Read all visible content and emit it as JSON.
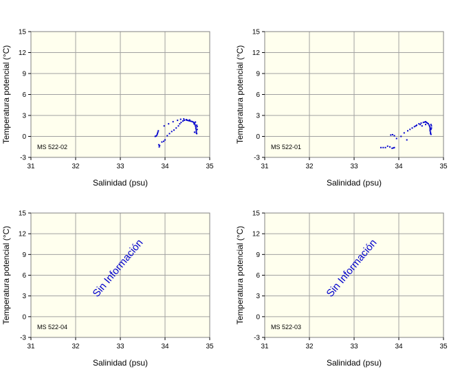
{
  "chart_data": [
    {
      "type": "scatter",
      "station": "MS 522-02",
      "xlabel": "Salinidad (psu)",
      "ylabel": "Temperatura potencial (°C)",
      "xlim": [
        31,
        35
      ],
      "ylim": [
        -3,
        15
      ],
      "xticks": [
        "31",
        "32",
        "33",
        "34",
        "35"
      ],
      "yticks": [
        "-3",
        "0",
        "3",
        "6",
        "9",
        "12",
        "15"
      ],
      "grid": true,
      "points": [
        [
          33.78,
          0.0
        ],
        [
          33.8,
          0.05
        ],
        [
          33.82,
          0.2
        ],
        [
          33.83,
          0.4
        ],
        [
          33.84,
          0.6
        ],
        [
          33.85,
          0.8
        ],
        [
          33.86,
          -1.2
        ],
        [
          33.87,
          -1.5
        ],
        [
          33.88,
          -1.3
        ],
        [
          33.93,
          -0.8
        ],
        [
          33.97,
          -0.7
        ],
        [
          34.0,
          -0.5
        ],
        [
          34.05,
          0.1
        ],
        [
          34.1,
          0.4
        ],
        [
          34.15,
          0.7
        ],
        [
          34.2,
          0.9
        ],
        [
          34.25,
          1.2
        ],
        [
          34.3,
          1.5
        ],
        [
          34.33,
          1.8
        ],
        [
          34.36,
          2.0
        ],
        [
          34.4,
          2.2
        ],
        [
          34.43,
          2.3
        ],
        [
          34.47,
          2.35
        ],
        [
          34.5,
          2.3
        ],
        [
          34.53,
          2.25
        ],
        [
          34.56,
          2.2
        ],
        [
          34.59,
          2.15
        ],
        [
          34.62,
          2.1
        ],
        [
          34.64,
          2.0
        ],
        [
          34.66,
          1.9
        ],
        [
          34.67,
          1.7
        ],
        [
          34.68,
          1.5
        ],
        [
          34.69,
          1.3
        ],
        [
          34.69,
          1.1
        ],
        [
          34.7,
          0.9
        ],
        [
          34.7,
          0.7
        ],
        [
          34.7,
          0.5
        ],
        [
          34.71,
          0.4
        ],
        [
          34.68,
          2.05
        ],
        [
          34.65,
          1.8
        ],
        [
          33.98,
          1.5
        ],
        [
          34.08,
          1.8
        ],
        [
          34.18,
          2.1
        ],
        [
          34.28,
          2.3
        ],
        [
          34.35,
          2.45
        ],
        [
          34.42,
          2.5
        ],
        [
          34.48,
          2.4
        ],
        [
          34.55,
          2.35
        ],
        [
          34.72,
          1.0
        ],
        [
          34.72,
          1.4
        ],
        [
          34.71,
          1.6
        ],
        [
          34.66,
          0.6
        ]
      ],
      "note": ""
    },
    {
      "type": "scatter",
      "station": "MS 522-01",
      "xlabel": "Salinidad (psu)",
      "ylabel": "Temperatura potencial (°C)",
      "xlim": [
        31,
        35
      ],
      "ylim": [
        -3,
        15
      ],
      "xticks": [
        "31",
        "32",
        "33",
        "34",
        "35"
      ],
      "yticks": [
        "-3",
        "0",
        "3",
        "6",
        "9",
        "12",
        "15"
      ],
      "grid": true,
      "points": [
        [
          33.6,
          -1.6
        ],
        [
          33.65,
          -1.6
        ],
        [
          33.7,
          -1.6
        ],
        [
          33.75,
          -1.4
        ],
        [
          33.8,
          -1.5
        ],
        [
          33.85,
          -1.7
        ],
        [
          33.88,
          -1.65
        ],
        [
          33.9,
          -1.6
        ],
        [
          33.82,
          0.2
        ],
        [
          33.86,
          0.25
        ],
        [
          33.9,
          0.1
        ],
        [
          33.95,
          -0.3
        ],
        [
          34.05,
          0.0
        ],
        [
          34.12,
          0.5
        ],
        [
          34.18,
          -0.5
        ],
        [
          34.2,
          0.8
        ],
        [
          34.25,
          1.0
        ],
        [
          34.3,
          1.2
        ],
        [
          34.35,
          1.4
        ],
        [
          34.4,
          1.6
        ],
        [
          34.45,
          1.8
        ],
        [
          34.5,
          1.9
        ],
        [
          34.55,
          2.0
        ],
        [
          34.58,
          2.05
        ],
        [
          34.6,
          2.1
        ],
        [
          34.62,
          2.0
        ],
        [
          34.64,
          1.9
        ],
        [
          34.66,
          1.8
        ],
        [
          34.68,
          1.6
        ],
        [
          34.69,
          1.4
        ],
        [
          34.7,
          1.2
        ],
        [
          34.7,
          1.0
        ],
        [
          34.7,
          0.8
        ],
        [
          34.71,
          0.6
        ],
        [
          34.71,
          0.4
        ],
        [
          34.72,
          0.3
        ],
        [
          34.38,
          1.5
        ],
        [
          34.48,
          1.7
        ],
        [
          34.52,
          1.5
        ],
        [
          34.6,
          1.7
        ],
        [
          34.72,
          1.7
        ],
        [
          34.73,
          1.5
        ],
        [
          34.73,
          1.2
        ],
        [
          34.72,
          1.0
        ]
      ],
      "note": ""
    },
    {
      "type": "scatter",
      "station": "MS 522-04",
      "xlabel": "Salinidad (psu)",
      "ylabel": "Temperatura potencial (°C)",
      "xlim": [
        31,
        35
      ],
      "ylim": [
        -3,
        15
      ],
      "xticks": [
        "31",
        "32",
        "33",
        "34",
        "35"
      ],
      "yticks": [
        "-3",
        "0",
        "3",
        "6",
        "9",
        "12",
        "15"
      ],
      "grid": true,
      "points": [],
      "note": "Sin Información"
    },
    {
      "type": "scatter",
      "station": "MS 522-03",
      "xlabel": "Salinidad (psu)",
      "ylabel": "Temperatura potencial (°C)",
      "xlim": [
        31,
        35
      ],
      "ylim": [
        -3,
        15
      ],
      "xticks": [
        "31",
        "32",
        "33",
        "34",
        "35"
      ],
      "yticks": [
        "-3",
        "0",
        "3",
        "6",
        "9",
        "12",
        "15"
      ],
      "grid": true,
      "points": [],
      "note": "Sin Información"
    }
  ],
  "colors": {
    "plot_bg": "#ffffee",
    "grid": "#a0a0a0",
    "points": "#0000cc",
    "note": "#0000cc"
  }
}
